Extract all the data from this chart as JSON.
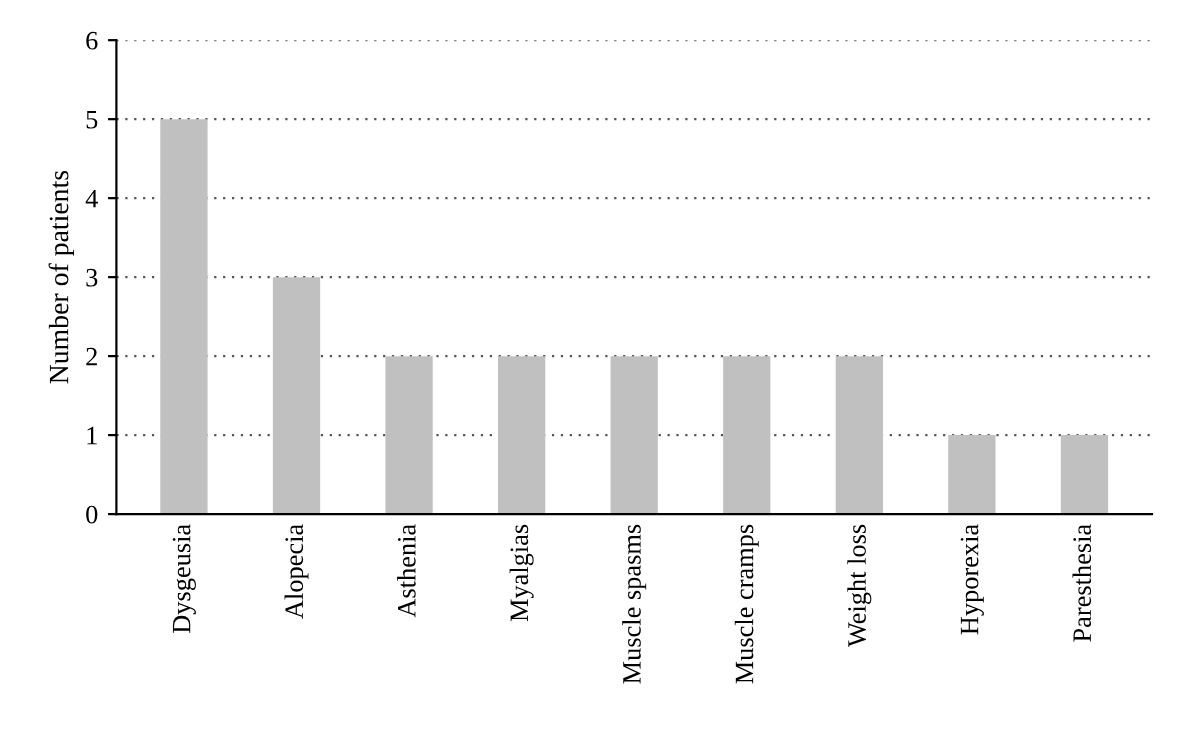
{
  "chart_data": {
    "type": "bar",
    "ylabel": "Number of patients",
    "categories": [
      "Dysgeusia",
      "Alopecia",
      "Asthenia",
      "Myalgias",
      "Muscle spasms",
      "Muscle cramps",
      "Weight loss",
      "Hyporexia",
      "Paresthesia"
    ],
    "values": [
      5,
      3,
      2,
      2,
      2,
      2,
      2,
      1,
      1
    ],
    "color": "#c0c0c0",
    "ylim": [
      0,
      6
    ],
    "yticks": [
      0,
      1,
      2,
      3,
      4,
      5,
      6
    ],
    "grid": "y",
    "line_style": "dotted"
  }
}
